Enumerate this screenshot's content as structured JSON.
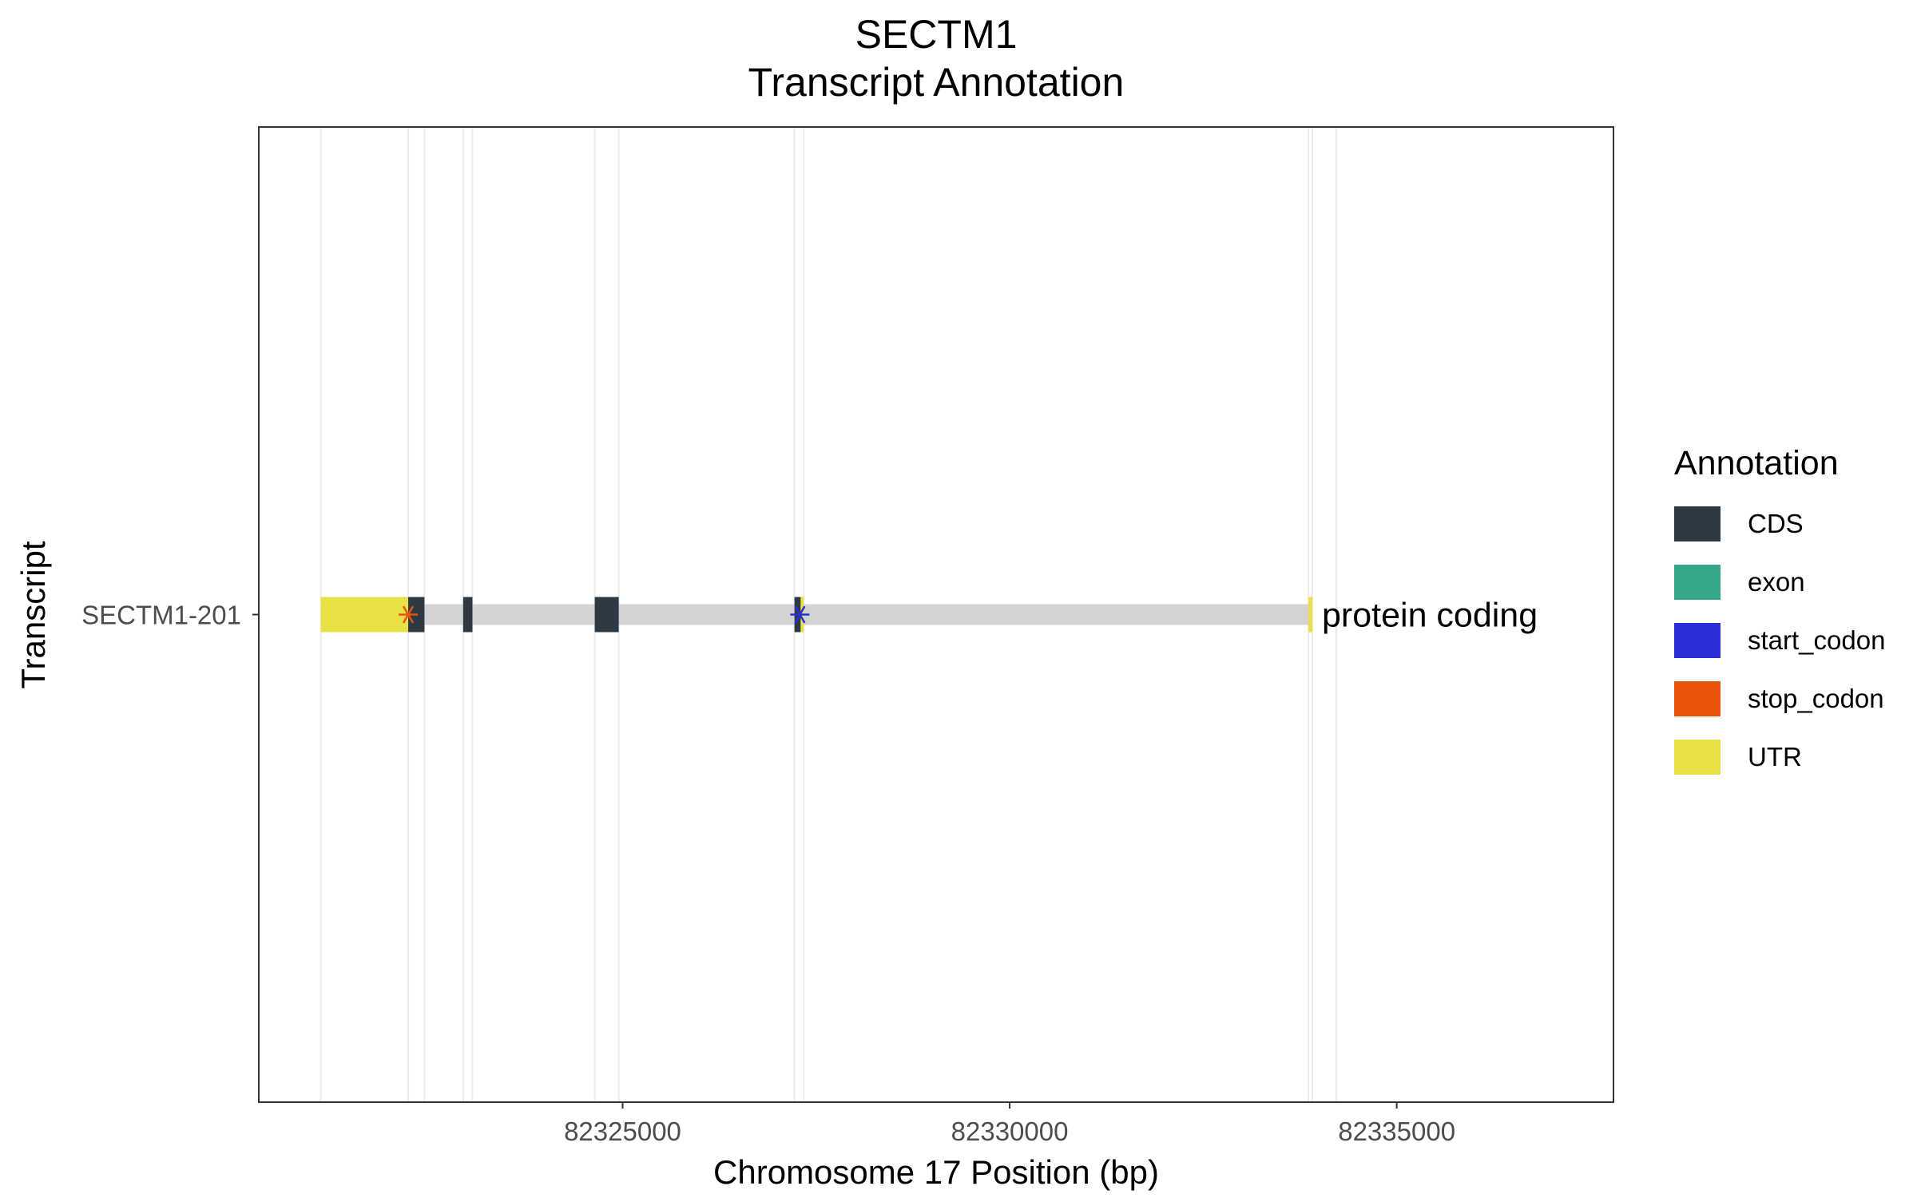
{
  "chart_data": {
    "type": "transcript-annotation",
    "title": "SECTM1",
    "subtitle": "Transcript Annotation",
    "xlabel": "Chromosome 17 Position (bp)",
    "ylabel": "Transcript",
    "xlim": [
      82320300,
      82337800
    ],
    "x_ticks": [
      82325000,
      82330000,
      82335000
    ],
    "x_tick_labels": [
      "82325000",
      "82330000",
      "82335000"
    ],
    "grid": true,
    "vertical_gridlines": [
      82321100,
      82322230,
      82322440,
      82322940,
      82323060,
      82324640,
      82324950,
      82327220,
      82327340,
      82333860,
      82333910,
      82334220
    ],
    "legend": {
      "title": "Annotation",
      "placement": "right",
      "items": [
        {
          "label": "CDS",
          "color": "#2d3a43"
        },
        {
          "label": "exon",
          "color": "#35a88c"
        },
        {
          "label": "start_codon",
          "color": "#2b2ed8"
        },
        {
          "label": "stop_codon",
          "color": "#e9530a"
        },
        {
          "label": "UTR",
          "color": "#e8e045"
        }
      ]
    },
    "intron_color": "#d3d3d3",
    "transcripts": [
      {
        "name": "SECTM1-201",
        "biotype_label": "protein coding",
        "start": 82321100,
        "end": 82333910,
        "features": [
          {
            "type": "UTR",
            "start": 82321100,
            "end": 82322230
          },
          {
            "type": "CDS",
            "start": 82322230,
            "end": 82322440
          },
          {
            "type": "CDS",
            "start": 82322940,
            "end": 82323060
          },
          {
            "type": "CDS",
            "start": 82324640,
            "end": 82324950
          },
          {
            "type": "CDS",
            "start": 82327220,
            "end": 82327300
          },
          {
            "type": "UTR",
            "start": 82327300,
            "end": 82327340
          },
          {
            "type": "UTR",
            "start": 82333860,
            "end": 82333910
          }
        ],
        "codons": [
          {
            "type": "stop_codon",
            "position": 82322230
          },
          {
            "type": "start_codon",
            "position": 82327290
          }
        ]
      }
    ]
  }
}
